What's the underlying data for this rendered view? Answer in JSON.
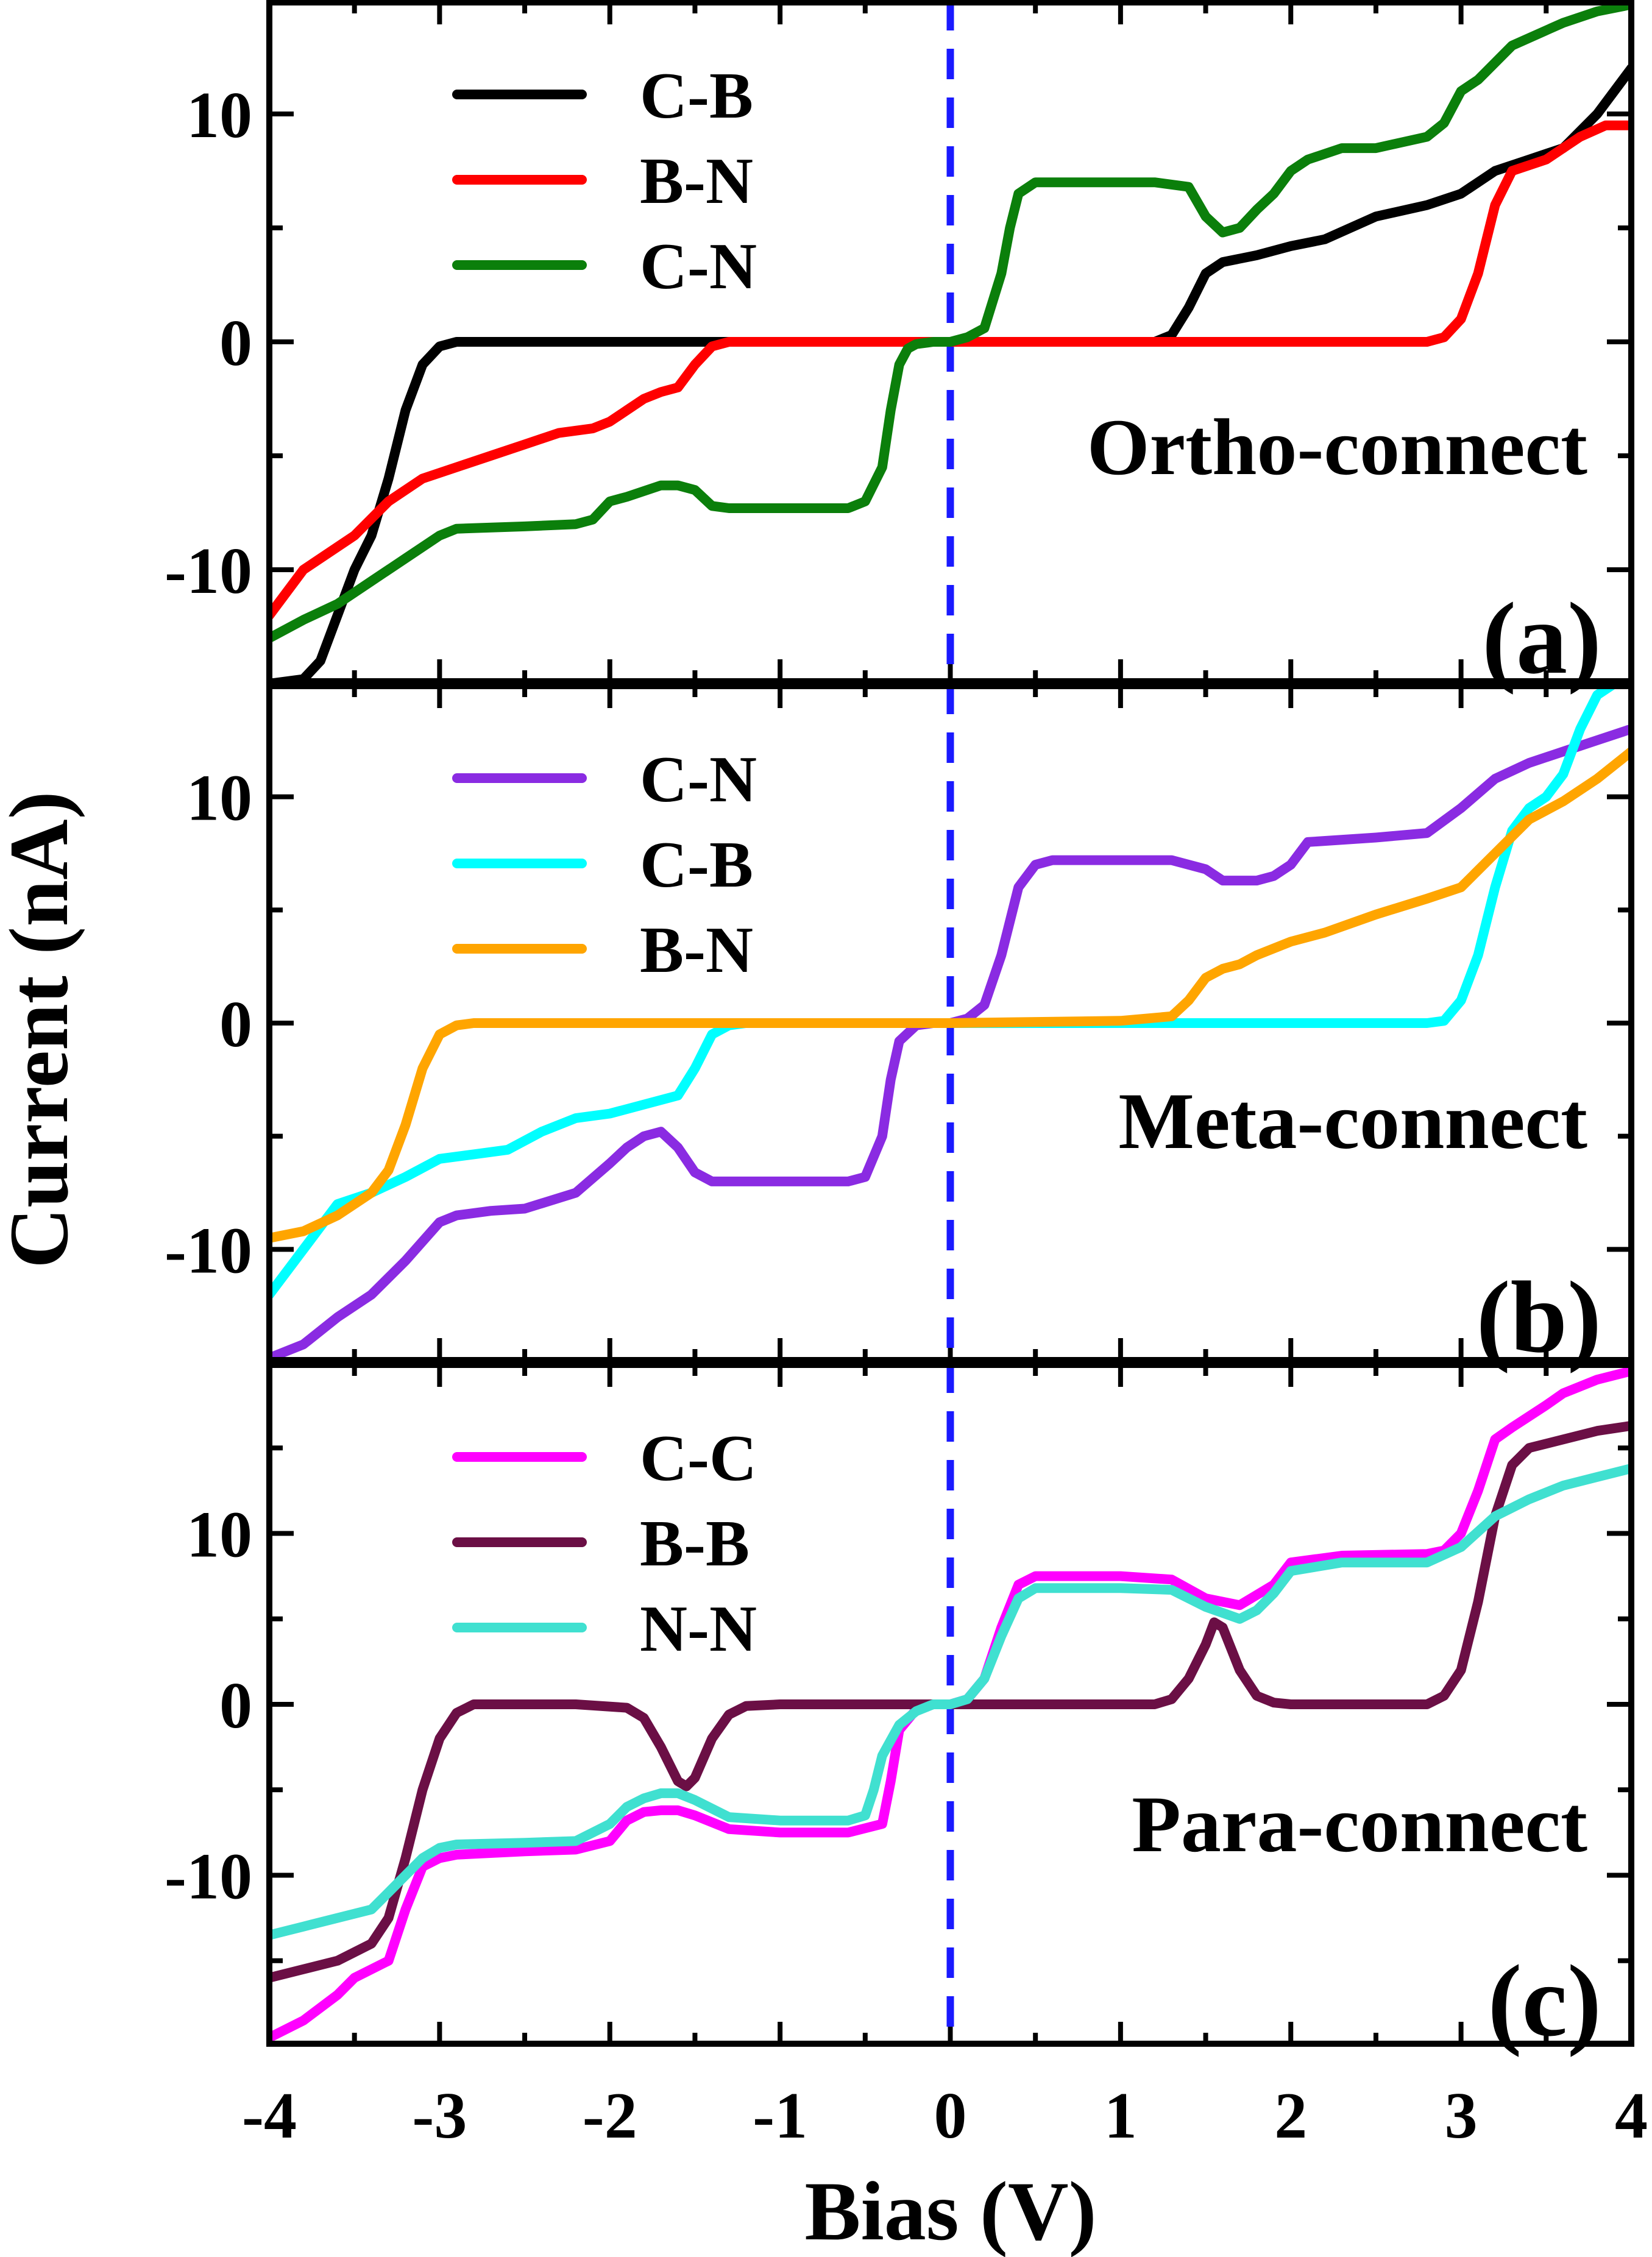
{
  "figure": {
    "ylabel": "Current (nA)",
    "xlabel": "Bias (V)",
    "zero_line_color": "#1a1aff"
  },
  "chart_data": [
    {
      "type": "line",
      "panel_tag": "(a)",
      "annotation": "Ortho-connect",
      "xlim": [
        -4,
        4
      ],
      "ylim": [
        -15,
        15
      ],
      "xticks": [
        -4,
        -3,
        -2,
        -1,
        0,
        1,
        2,
        3,
        4
      ],
      "yticks": [
        -10,
        0,
        10
      ],
      "ytick_labels": [
        "-10",
        "0",
        "10"
      ],
      "legend_position": "top-left",
      "series": [
        {
          "name": "C-B",
          "color": "#000000",
          "x": [
            -4,
            -3.8,
            -3.7,
            -3.6,
            -3.5,
            -3.4,
            -3.3,
            -3.2,
            -3.1,
            -3.0,
            -2.9,
            -2.8,
            -2.5,
            -1.0,
            1.2,
            1.3,
            1.4,
            1.5,
            1.6,
            1.8,
            2.0,
            2.2,
            2.5,
            2.8,
            3.0,
            3.2,
            3.4,
            3.6,
            3.8,
            4.0
          ],
          "y": [
            -15,
            -14.8,
            -14,
            -12,
            -10,
            -8.5,
            -6,
            -3,
            -1,
            -0.2,
            0,
            0,
            0,
            0,
            0,
            0.3,
            1.5,
            3,
            3.5,
            3.8,
            4.2,
            4.5,
            5.5,
            6,
            6.5,
            7.5,
            8,
            8.5,
            10,
            12
          ]
        },
        {
          "name": "B-N",
          "color": "#ff0000",
          "x": [
            -4,
            -3.8,
            -3.5,
            -3.3,
            -3.1,
            -2.9,
            -2.7,
            -2.5,
            -2.3,
            -2.1,
            -2.0,
            -1.9,
            -1.8,
            -1.7,
            -1.6,
            -1.5,
            -1.4,
            -1.3,
            -1.2,
            -1.0,
            0,
            1.0,
            2.0,
            2.8,
            2.9,
            3.0,
            3.1,
            3.2,
            3.3,
            3.5,
            3.7,
            3.85,
            4.0
          ],
          "y": [
            -12,
            -10,
            -8.5,
            -7,
            -6,
            -5.5,
            -5,
            -4.5,
            -4,
            -3.8,
            -3.5,
            -3,
            -2.5,
            -2.2,
            -2,
            -1,
            -0.2,
            0,
            0,
            0,
            0,
            0,
            0,
            0,
            0.2,
            1,
            3,
            6,
            7.5,
            8,
            9,
            9.5,
            9.5
          ]
        },
        {
          "name": "C-N",
          "color": "#0b7f0b",
          "x": [
            -4,
            -3.8,
            -3.6,
            -3.4,
            -3.2,
            -3.0,
            -2.9,
            -2.5,
            -2.2,
            -2.1,
            -2.0,
            -1.9,
            -1.7,
            -1.6,
            -1.5,
            -1.4,
            -1.3,
            -1.0,
            -0.6,
            -0.5,
            -0.4,
            -0.35,
            -0.3,
            -0.25,
            -0.2,
            -0.1,
            0,
            0.1,
            0.2,
            0.3,
            0.35,
            0.4,
            0.5,
            0.6,
            1.0,
            1.2,
            1.4,
            1.5,
            1.6,
            1.7,
            1.8,
            1.9,
            2.0,
            2.1,
            2.3,
            2.5,
            2.8,
            2.9,
            3.0,
            3.1,
            3.3,
            3.6,
            3.8,
            4.0
          ],
          "y": [
            -13,
            -12.2,
            -11.5,
            -10.5,
            -9.5,
            -8.5,
            -8.2,
            -8.1,
            -8,
            -7.8,
            -7,
            -6.8,
            -6.3,
            -6.3,
            -6.5,
            -7.2,
            -7.3,
            -7.3,
            -7.3,
            -7.0,
            -5.5,
            -3.0,
            -1.0,
            -0.3,
            -0.1,
            0,
            0,
            0.2,
            0.6,
            3.0,
            5.0,
            6.5,
            7,
            7,
            7,
            7,
            6.8,
            5.5,
            4.8,
            5,
            5.8,
            6.5,
            7.5,
            8,
            8.5,
            8.5,
            9,
            9.6,
            11,
            11.5,
            13,
            14,
            14.5,
            14.8
          ]
        }
      ]
    },
    {
      "type": "line",
      "panel_tag": "(b)",
      "annotation": "Meta-connect",
      "xlim": [
        -4,
        4
      ],
      "ylim": [
        -15,
        15
      ],
      "xticks": [
        -4,
        -3,
        -2,
        -1,
        0,
        1,
        2,
        3,
        4
      ],
      "yticks": [
        -10,
        0,
        10
      ],
      "ytick_labels": [
        "-10",
        "0",
        "10"
      ],
      "legend_position": "top-left",
      "series": [
        {
          "name": "C-N",
          "color": "#8a2be2",
          "x": [
            -4,
            -3.8,
            -3.6,
            -3.4,
            -3.2,
            -3.0,
            -2.9,
            -2.7,
            -2.5,
            -2.2,
            -2.0,
            -1.9,
            -1.8,
            -1.7,
            -1.6,
            -1.5,
            -1.4,
            -1.3,
            -1.0,
            -0.6,
            -0.5,
            -0.4,
            -0.35,
            -0.3,
            -0.2,
            -0.1,
            0,
            0.1,
            0.2,
            0.3,
            0.4,
            0.5,
            0.6,
            1.0,
            1.3,
            1.5,
            1.6,
            1.8,
            1.9,
            2.0,
            2.1,
            2.5,
            2.8,
            3.0,
            3.2,
            3.4,
            3.6,
            3.8,
            4.0
          ],
          "y": [
            -14.8,
            -14.2,
            -13,
            -12,
            -10.5,
            -8.8,
            -8.5,
            -8.3,
            -8.2,
            -7.5,
            -6.2,
            -5.5,
            -5,
            -4.8,
            -5.5,
            -6.6,
            -7,
            -7,
            -7,
            -7,
            -6.8,
            -5,
            -2.5,
            -0.8,
            -0.1,
            0,
            0,
            0.2,
            0.8,
            3.0,
            6.0,
            7,
            7.2,
            7.2,
            7.2,
            6.8,
            6.3,
            6.3,
            6.5,
            7,
            8,
            8.2,
            8.4,
            9.5,
            10.8,
            11.5,
            12,
            12.5,
            13
          ]
        },
        {
          "name": "C-B",
          "color": "#00ffff",
          "x": [
            -4,
            -3.8,
            -3.6,
            -3.4,
            -3.2,
            -3.0,
            -2.8,
            -2.6,
            -2.4,
            -2.2,
            -2.0,
            -1.8,
            -1.6,
            -1.5,
            -1.4,
            -1.3,
            -1.2,
            -1.0,
            0,
            1.0,
            2.0,
            2.8,
            2.9,
            3.0,
            3.1,
            3.2,
            3.3,
            3.4,
            3.5,
            3.6,
            3.7,
            3.8,
            3.9,
            4.0
          ],
          "y": [
            -12,
            -10,
            -8,
            -7.5,
            -6.8,
            -6,
            -5.8,
            -5.6,
            -4.8,
            -4.2,
            -4.0,
            -3.6,
            -3.2,
            -2.0,
            -0.5,
            -0.1,
            0,
            0,
            0,
            0,
            0,
            0,
            0.1,
            1.0,
            3.0,
            6.0,
            8.5,
            9.5,
            10,
            11,
            13,
            14.5,
            15,
            15
          ]
        },
        {
          "name": "B-N",
          "color": "#ffa500",
          "x": [
            -4,
            -3.8,
            -3.6,
            -3.4,
            -3.3,
            -3.2,
            -3.1,
            -3.0,
            -2.9,
            -2.8,
            -2.6,
            -2.0,
            0,
            1.0,
            1.3,
            1.4,
            1.5,
            1.6,
            1.7,
            1.8,
            2.0,
            2.2,
            2.5,
            2.8,
            3.0,
            3.2,
            3.4,
            3.6,
            3.8,
            4.0
          ],
          "y": [
            -9.5,
            -9.2,
            -8.5,
            -7.5,
            -6.5,
            -4.5,
            -2.0,
            -0.5,
            -0.1,
            0,
            0,
            0,
            0,
            0.1,
            0.3,
            1.0,
            2.0,
            2.4,
            2.6,
            3.0,
            3.6,
            4.0,
            4.8,
            5.5,
            6.0,
            7.5,
            9.0,
            9.8,
            10.8,
            12
          ]
        }
      ]
    },
    {
      "type": "line",
      "panel_tag": "(c)",
      "annotation": "Para-connect",
      "xlim": [
        -4,
        4
      ],
      "ylim": [
        -20,
        20
      ],
      "xticks": [
        -4,
        -3,
        -2,
        -1,
        0,
        1,
        2,
        3,
        4
      ],
      "yticks": [
        -10,
        0,
        10
      ],
      "ytick_labels": [
        "-10",
        "0",
        "10"
      ],
      "legend_position": "top-left",
      "series": [
        {
          "name": "C-C",
          "color": "#ff00ff",
          "x": [
            -4,
            -3.8,
            -3.6,
            -3.5,
            -3.3,
            -3.2,
            -3.1,
            -3.0,
            -2.9,
            -2.5,
            -2.2,
            -2.0,
            -1.9,
            -1.8,
            -1.7,
            -1.6,
            -1.5,
            -1.3,
            -1.0,
            -0.6,
            -0.4,
            -0.35,
            -0.3,
            -0.2,
            -0.1,
            0,
            0.1,
            0.2,
            0.3,
            0.4,
            0.5,
            0.6,
            1.0,
            1.3,
            1.5,
            1.7,
            1.8,
            1.9,
            2.0,
            2.3,
            2.8,
            2.9,
            3.0,
            3.1,
            3.2,
            3.3,
            3.5,
            3.6,
            3.8,
            4.0
          ],
          "y": [
            -19.5,
            -18.5,
            -17,
            -16,
            -15,
            -12,
            -9.5,
            -9,
            -8.8,
            -8.6,
            -8.5,
            -8.0,
            -6.8,
            -6.3,
            -6.2,
            -6.2,
            -6.5,
            -7.3,
            -7.5,
            -7.5,
            -7,
            -4.5,
            -1.5,
            -0.3,
            0,
            0,
            0.3,
            1.5,
            4.5,
            7,
            7.5,
            7.5,
            7.5,
            7.3,
            6.2,
            5.8,
            6.4,
            7,
            8.3,
            8.7,
            8.8,
            9.0,
            10,
            12.5,
            15.5,
            16.2,
            17.5,
            18.2,
            19,
            19.5
          ]
        },
        {
          "name": "B-B",
          "color": "#6b0f45",
          "x": [
            -4,
            -3.8,
            -3.6,
            -3.4,
            -3.3,
            -3.2,
            -3.1,
            -3.0,
            -2.9,
            -2.8,
            -2.5,
            -2.2,
            -1.9,
            -1.8,
            -1.7,
            -1.6,
            -1.55,
            -1.5,
            -1.4,
            -1.3,
            -1.2,
            -1.0,
            0,
            1.0,
            1.2,
            1.3,
            1.4,
            1.5,
            1.55,
            1.6,
            1.7,
            1.8,
            1.9,
            2.0,
            2.5,
            2.8,
            2.9,
            3.0,
            3.1,
            3.2,
            3.3,
            3.4,
            3.6,
            3.8,
            4.0
          ],
          "y": [
            -16,
            -15.5,
            -15,
            -14,
            -12.5,
            -9,
            -5,
            -2,
            -0.5,
            0,
            0,
            0,
            -0.2,
            -0.8,
            -2.5,
            -4.5,
            -4.8,
            -4.3,
            -2.0,
            -0.6,
            -0.1,
            0,
            0,
            0,
            0,
            0.3,
            1.5,
            3.5,
            4.8,
            4.5,
            2.0,
            0.5,
            0.1,
            0,
            0,
            0,
            0.5,
            2.0,
            6.0,
            11,
            14,
            15,
            15.5,
            16,
            16.3
          ]
        },
        {
          "name": "N-N",
          "color": "#40e0d0",
          "x": [
            -4,
            -3.8,
            -3.6,
            -3.4,
            -3.3,
            -3.2,
            -3.1,
            -3.0,
            -2.9,
            -2.5,
            -2.2,
            -2.0,
            -1.9,
            -1.8,
            -1.7,
            -1.6,
            -1.5,
            -1.3,
            -1.0,
            -0.6,
            -0.5,
            -0.45,
            -0.4,
            -0.3,
            -0.2,
            -0.1,
            0,
            0.1,
            0.2,
            0.3,
            0.4,
            0.5,
            0.6,
            1.0,
            1.3,
            1.5,
            1.7,
            1.8,
            1.9,
            2.0,
            2.3,
            2.8,
            3.0,
            3.2,
            3.4,
            3.6,
            3.8,
            4.0
          ],
          "y": [
            -13.5,
            -13,
            -12.5,
            -12,
            -11,
            -10,
            -9.0,
            -8.4,
            -8.2,
            -8.1,
            -8,
            -7,
            -6,
            -5.5,
            -5.2,
            -5.2,
            -5.6,
            -6.6,
            -6.8,
            -6.8,
            -6.5,
            -5.0,
            -3.0,
            -1.2,
            -0.4,
            0,
            0,
            0.3,
            1.5,
            4.0,
            6.2,
            6.8,
            6.8,
            6.8,
            6.7,
            5.7,
            5.0,
            5.5,
            6.5,
            7.8,
            8.3,
            8.3,
            9.2,
            11,
            12,
            12.8,
            13.3,
            13.8
          ]
        }
      ]
    }
  ]
}
